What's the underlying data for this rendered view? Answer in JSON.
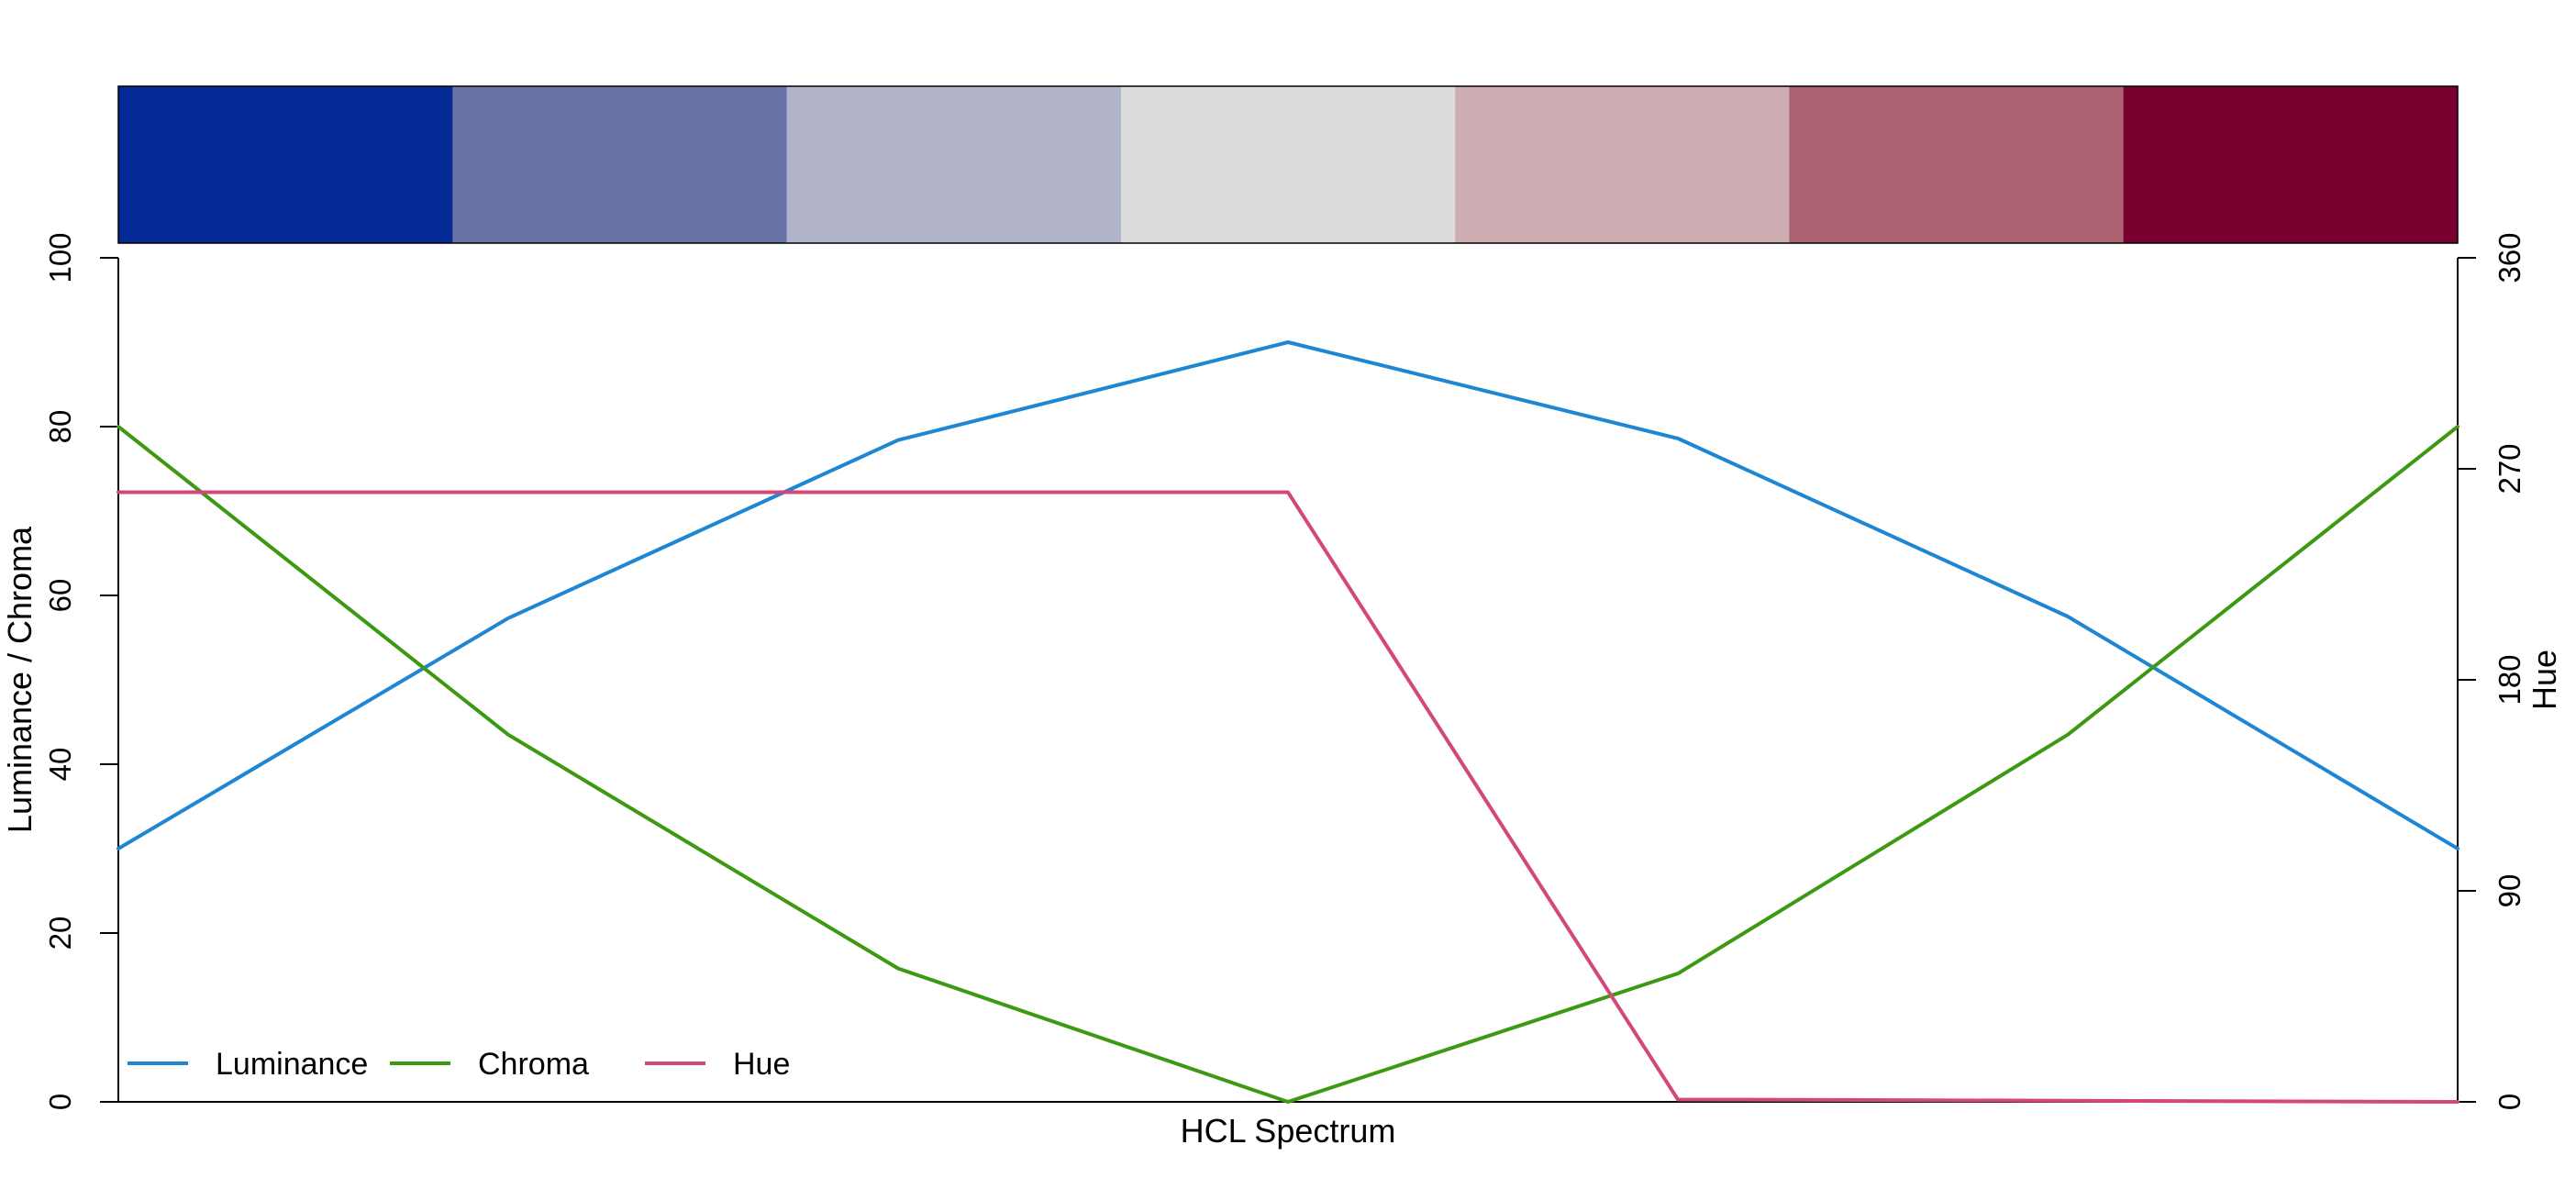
{
  "chart_data": {
    "type": "line",
    "xlabel": "HCL Spectrum",
    "ylabel_left": "Luminance / Chroma",
    "ylabel_right": "Hue",
    "x": [
      1,
      2,
      3,
      4,
      5,
      6,
      7
    ],
    "xlim": [
      1,
      7
    ],
    "ylim_left": [
      0,
      100
    ],
    "ylim_right": [
      0,
      360
    ],
    "yticks_left": [
      "0",
      "20",
      "40",
      "60",
      "80",
      "100"
    ],
    "yticks_right": [
      "0",
      "90",
      "180",
      "270",
      "360"
    ],
    "swatches": [
      "#062A95",
      "#6A73A8",
      "#B2B4CB",
      "#DCDCDC",
      "#CDADB2",
      "#AB6270",
      "#78002E"
    ],
    "series": [
      {
        "name": "Luminance",
        "axis": "left",
        "color": "#1F86D4",
        "values": [
          30,
          57.3,
          78.4,
          90,
          78.6,
          57.5,
          30
        ]
      },
      {
        "name": "Chroma",
        "axis": "left",
        "color": "#3D9912",
        "values": [
          80,
          43.5,
          15.8,
          0,
          15.2,
          43.5,
          80
        ]
      },
      {
        "name": "Hue",
        "axis": "right",
        "color": "#D3477A",
        "values": [
          260,
          260,
          260,
          260,
          1,
          0.5,
          0
        ]
      }
    ],
    "legend_position": "bottom-left",
    "grid": false
  }
}
